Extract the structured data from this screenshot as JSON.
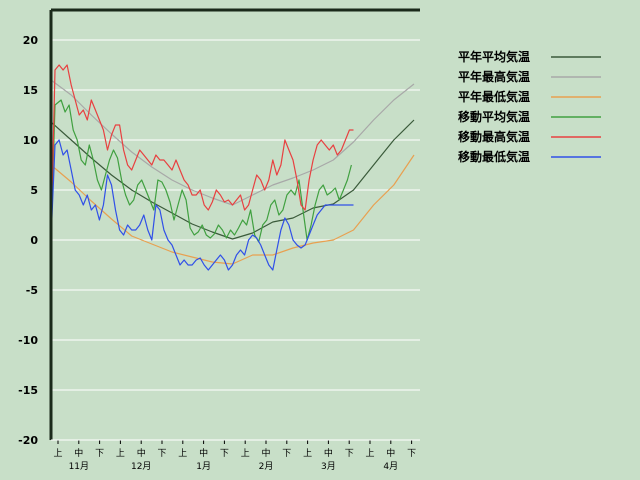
{
  "chart_data": {
    "type": "line",
    "title": "",
    "xlabel": "",
    "ylabel": "",
    "ylim": [
      -20,
      23
    ],
    "yticks": [
      20,
      15,
      10,
      5,
      0,
      -5,
      -10,
      -15,
      -20
    ],
    "x_range": [
      0,
      183
    ],
    "period_ticks": [
      "上",
      "中",
      "下",
      "上",
      "中",
      "下",
      "上",
      "中",
      "下",
      "上",
      "中",
      "下",
      "上",
      "中",
      "下",
      "上",
      "中",
      "下"
    ],
    "month_labels": [
      "11月",
      "12月",
      "1月",
      "2月",
      "3月",
      "4月"
    ],
    "grid": true,
    "legend_position": "right",
    "series": [
      {
        "name": "平年平均気温",
        "color": "#3a5a3a",
        "x": [
          0,
          10,
          20,
          30,
          40,
          50,
          60,
          70,
          80,
          90,
          100,
          110,
          120,
          130,
          140,
          150,
          160,
          170,
          180
        ],
        "values": [
          11.8,
          10.0,
          8.2,
          6.5,
          5.0,
          3.8,
          2.7,
          1.6,
          0.8,
          0.1,
          0.7,
          1.8,
          2.2,
          3.2,
          3.6,
          5.0,
          7.5,
          10.0,
          12.0
        ]
      },
      {
        "name": "平年最高気温",
        "color": "#a8a8a8",
        "x": [
          0,
          10,
          20,
          30,
          40,
          50,
          60,
          70,
          80,
          90,
          100,
          110,
          120,
          130,
          140,
          150,
          160,
          170,
          180
        ],
        "values": [
          16.0,
          14.5,
          12.5,
          10.6,
          8.8,
          7.3,
          6.0,
          5.0,
          4.2,
          3.5,
          4.5,
          5.5,
          6.2,
          7.0,
          8.0,
          9.8,
          12.0,
          14.0,
          15.6
        ]
      },
      {
        "name": "平年最低気温",
        "color": "#e8a050",
        "x": [
          0,
          10,
          20,
          30,
          40,
          50,
          60,
          70,
          80,
          90,
          100,
          110,
          120,
          130,
          140,
          150,
          160,
          170,
          180
        ],
        "values": [
          7.5,
          5.8,
          3.9,
          2.1,
          0.4,
          -0.4,
          -1.2,
          -1.7,
          -2.2,
          -2.4,
          -1.5,
          -1.5,
          -0.8,
          -0.3,
          0.0,
          1.0,
          3.5,
          5.5,
          8.5
        ]
      },
      {
        "name": "移動平均気温",
        "color": "#40a040",
        "x": [
          0,
          2,
          5,
          7,
          9,
          11,
          13,
          15,
          17,
          19,
          21,
          23,
          25,
          27,
          29,
          31,
          33,
          35,
          37,
          39,
          41,
          43,
          45,
          47,
          49,
          51,
          53,
          55,
          57,
          59,
          61,
          63,
          65,
          67,
          69,
          71,
          73,
          75,
          77,
          79,
          81,
          83,
          85,
          87,
          89,
          91,
          93,
          95,
          97,
          99,
          101,
          103,
          105,
          107,
          109,
          111,
          113,
          115,
          117,
          119,
          121,
          123,
          125,
          127,
          129,
          131,
          133,
          135,
          137,
          139,
          141,
          143,
          145,
          147,
          149
        ],
        "values": [
          0.0,
          13.5,
          14.0,
          12.8,
          13.5,
          11.0,
          10.0,
          8.0,
          7.5,
          9.5,
          8.0,
          6.0,
          5.0,
          6.5,
          8.0,
          9.0,
          8.2,
          6.0,
          4.5,
          3.5,
          4.0,
          5.5,
          6.0,
          5.0,
          4.0,
          3.0,
          6.0,
          5.8,
          5.0,
          3.8,
          2.0,
          3.5,
          5.0,
          4.0,
          1.2,
          0.5,
          0.8,
          1.5,
          0.5,
          0.2,
          0.6,
          1.5,
          1.0,
          0.2,
          1.0,
          0.5,
          1.2,
          2.0,
          1.5,
          3.0,
          0.5,
          -0.2,
          1.5,
          2.0,
          3.5,
          4.0,
          2.5,
          3.0,
          4.5,
          5.0,
          4.5,
          6.0,
          3.0,
          0.0,
          1.5,
          3.5,
          5.0,
          5.5,
          4.5,
          4.8,
          5.2,
          4.0,
          5.0,
          6.0,
          7.5
        ]
      },
      {
        "name": "移動最高気温",
        "color": "#e84040",
        "x": [
          0,
          2,
          4,
          6,
          8,
          10,
          12,
          14,
          16,
          18,
          20,
          22,
          24,
          26,
          28,
          30,
          32,
          34,
          36,
          38,
          40,
          42,
          44,
          46,
          48,
          50,
          52,
          54,
          56,
          58,
          60,
          62,
          64,
          66,
          68,
          70,
          72,
          74,
          76,
          78,
          80,
          82,
          84,
          86,
          88,
          90,
          92,
          94,
          96,
          98,
          100,
          102,
          104,
          106,
          108,
          110,
          112,
          114,
          116,
          118,
          120,
          122,
          124,
          126,
          128,
          130,
          132,
          134,
          136,
          138,
          140,
          142,
          144,
          146,
          148,
          150
        ],
        "values": [
          0.0,
          17.0,
          17.5,
          17.0,
          17.5,
          15.5,
          14.0,
          12.5,
          13.0,
          12.0,
          14.0,
          13.0,
          12.0,
          11.0,
          9.0,
          10.5,
          11.5,
          11.5,
          9.0,
          7.5,
          7.0,
          8.0,
          9.0,
          8.5,
          8.0,
          7.5,
          8.5,
          8.0,
          8.0,
          7.5,
          7.0,
          8.0,
          7.0,
          6.0,
          5.5,
          4.5,
          4.5,
          5.0,
          3.5,
          3.0,
          3.8,
          5.0,
          4.5,
          3.8,
          4.0,
          3.5,
          4.0,
          4.5,
          3.0,
          3.5,
          5.0,
          6.5,
          6.0,
          5.0,
          6.0,
          8.0,
          6.5,
          7.5,
          10.0,
          9.0,
          8.0,
          6.0,
          3.5,
          3.0,
          6.0,
          8.0,
          9.5,
          10.0,
          9.5,
          9.0,
          9.5,
          8.5,
          9.0,
          10.0,
          11.0,
          11.0
        ]
      },
      {
        "name": "移動最低気温",
        "color": "#3050e8",
        "x": [
          0,
          2,
          4,
          6,
          8,
          10,
          12,
          14,
          16,
          18,
          20,
          22,
          24,
          26,
          28,
          30,
          32,
          34,
          36,
          38,
          40,
          42,
          44,
          46,
          48,
          50,
          52,
          54,
          56,
          58,
          60,
          62,
          64,
          66,
          68,
          70,
          72,
          74,
          76,
          78,
          80,
          82,
          84,
          86,
          88,
          90,
          92,
          94,
          96,
          98,
          100,
          102,
          104,
          106,
          108,
          110,
          112,
          114,
          116,
          118,
          120,
          122,
          124,
          126,
          128,
          130,
          132,
          134,
          136,
          138,
          140,
          142,
          144,
          146,
          148,
          150
        ],
        "values": [
          0.0,
          9.5,
          10.0,
          8.5,
          9.0,
          7.0,
          5.0,
          4.5,
          3.5,
          4.5,
          3.0,
          3.5,
          2.0,
          3.5,
          6.5,
          5.5,
          3.0,
          1.0,
          0.5,
          1.5,
          1.0,
          1.0,
          1.5,
          2.5,
          1.0,
          0.0,
          3.5,
          3.0,
          1.0,
          0.0,
          -0.5,
          -1.5,
          -2.5,
          -2.0,
          -2.5,
          -2.5,
          -2.0,
          -1.8,
          -2.5,
          -3.0,
          -2.5,
          -2.0,
          -1.5,
          -2.0,
          -3.0,
          -2.5,
          -1.5,
          -1.0,
          -1.5,
          0.0,
          0.5,
          0.2,
          -0.5,
          -1.5,
          -2.5,
          -3.0,
          -1.0,
          1.0,
          2.2,
          1.5,
          0.0,
          -0.5,
          -0.8,
          -0.5,
          0.5,
          1.5,
          2.5,
          3.0,
          3.5,
          3.5,
          3.5,
          3.5,
          3.5,
          3.5,
          3.5,
          3.5
        ]
      }
    ]
  }
}
